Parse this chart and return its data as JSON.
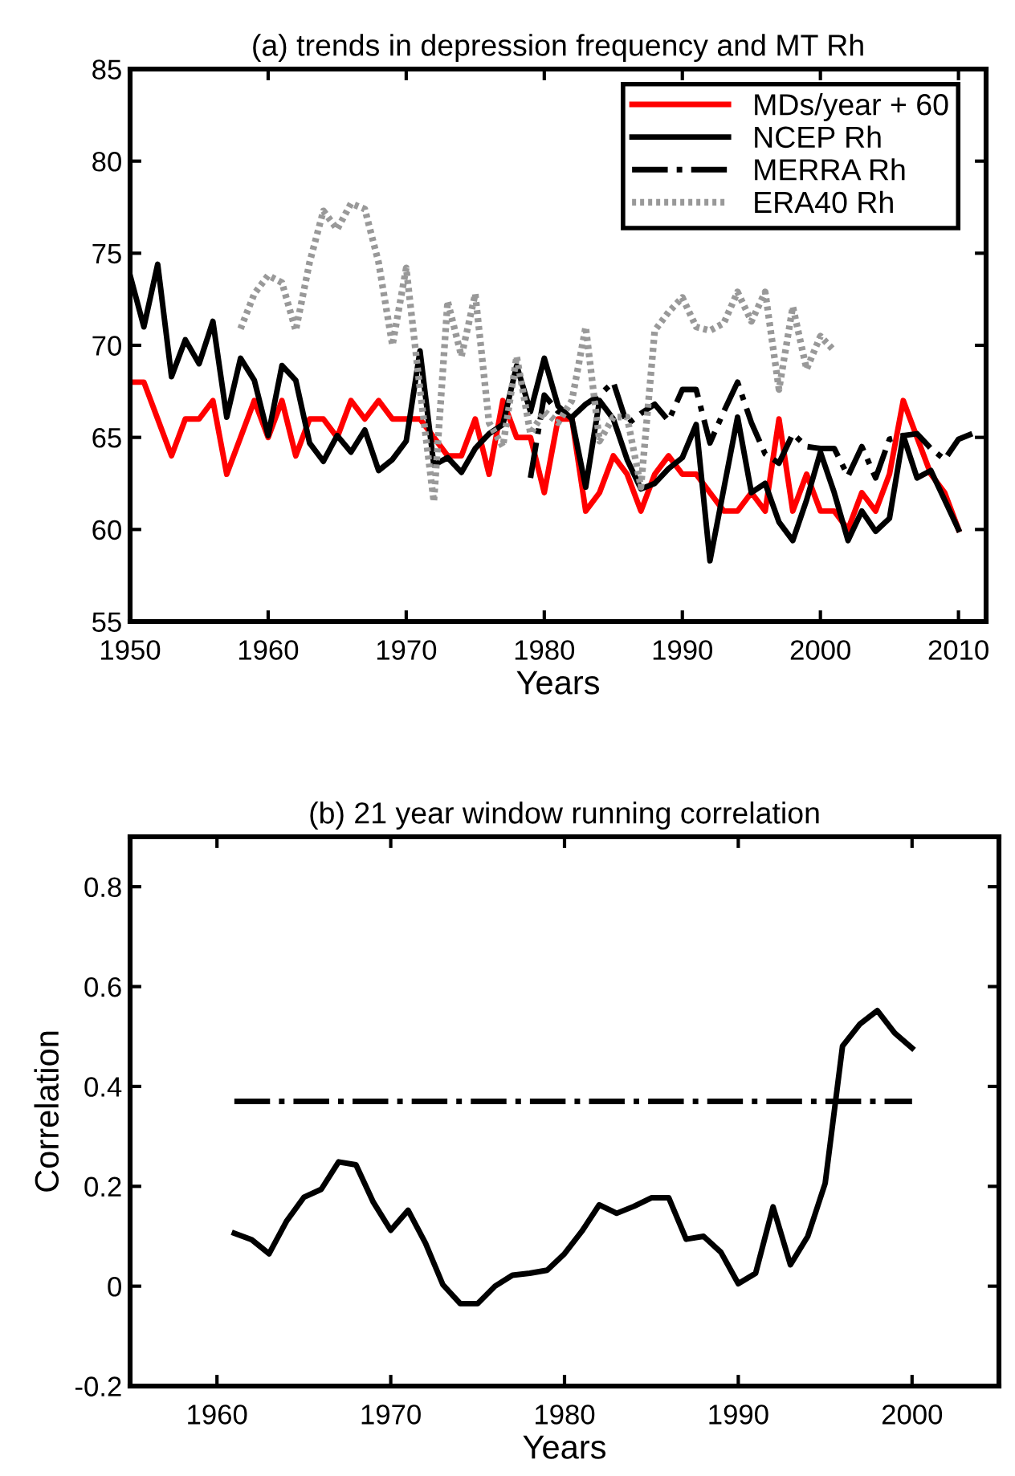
{
  "chart_data": [
    {
      "type": "line",
      "title": "(a) trends in depression frequency and MT Rh",
      "xlabel": "Years",
      "xlim": [
        1950,
        2012
      ],
      "xticks": [
        1950,
        1960,
        1970,
        1980,
        1990,
        2000,
        2010
      ],
      "ylim": [
        55,
        85
      ],
      "yticks": [
        55,
        60,
        65,
        70,
        75,
        80,
        85
      ],
      "legend": "top right",
      "grid": false,
      "series": [
        {
          "name": "MDs/year + 60",
          "color": "#ff0000",
          "line_style": "solid",
          "x": [
            1950,
            1951,
            1952,
            1953,
            1954,
            1955,
            1956,
            1957,
            1958,
            1959,
            1960,
            1961,
            1962,
            1963,
            1964,
            1965,
            1966,
            1967,
            1968,
            1969,
            1970,
            1971,
            1972,
            1973,
            1974,
            1975,
            1976,
            1977,
            1978,
            1979,
            1980,
            1981,
            1982,
            1983,
            1984,
            1985,
            1986,
            1987,
            1988,
            1989,
            1990,
            1991,
            1992,
            1993,
            1994,
            1995,
            1996,
            1997,
            1998,
            1999,
            2000,
            2001,
            2002,
            2003,
            2004,
            2005,
            2006,
            2007,
            2008,
            2009,
            2010
          ],
          "values": [
            68,
            68,
            66,
            64,
            66,
            66,
            67,
            63,
            65,
            67,
            65,
            67,
            64,
            66,
            66,
            65,
            67,
            66,
            67,
            66,
            66,
            66,
            65,
            64,
            64,
            66,
            63,
            67,
            65,
            65,
            62,
            66,
            66,
            61,
            62,
            64,
            63,
            61,
            63,
            64,
            63,
            63,
            62,
            61,
            61,
            62,
            61,
            66,
            61,
            63,
            61,
            61,
            60,
            62,
            61,
            63,
            67,
            65,
            63,
            62,
            60
          ]
        },
        {
          "name": "NCEP Rh",
          "color": "#000000",
          "line_style": "solid",
          "x": [
            1950,
            1951,
            1952,
            1953,
            1954,
            1955,
            1956,
            1957,
            1958,
            1959,
            1960,
            1961,
            1962,
            1963,
            1964,
            1965,
            1966,
            1967,
            1968,
            1969,
            1970,
            1971,
            1972,
            1973,
            1974,
            1975,
            1976,
            1977,
            1978,
            1979,
            1980,
            1981,
            1982,
            1983,
            1984,
            1985,
            1986,
            1987,
            1988,
            1989,
            1990,
            1991,
            1992,
            1993,
            1994,
            1995,
            1996,
            1997,
            1998,
            1999,
            2000,
            2001,
            2002,
            2003,
            2004,
            2005,
            2006,
            2007,
            2008,
            2009,
            2010
          ],
          "values": [
            73.8,
            71.0,
            74.4,
            68.3,
            70.3,
            69.0,
            71.3,
            66.1,
            69.3,
            68.1,
            65.1,
            68.9,
            68.1,
            64.7,
            63.7,
            65.1,
            64.2,
            65.4,
            63.2,
            63.8,
            64.8,
            69.7,
            63.5,
            63.9,
            63.1,
            64.4,
            65.2,
            65.7,
            68.9,
            66.4,
            69.3,
            66.7,
            66.0,
            62.3,
            67.0,
            66.0,
            63.8,
            62.2,
            62.5,
            63.3,
            63.9,
            65.7,
            58.3,
            62.2,
            66.1,
            62.0,
            62.5,
            60.4,
            59.4,
            61.6,
            64.2,
            62.0,
            59.4,
            61.0,
            59.9,
            60.6,
            65.1,
            62.8,
            63.2,
            61.6,
            60.0
          ]
        },
        {
          "name": "MERRA Rh",
          "color": "#000000",
          "line_style": "dashdot",
          "x": [
            1979,
            1980,
            1981,
            1982,
            1983,
            1984,
            1985,
            1986,
            1987,
            1988,
            1989,
            1990,
            1991,
            1992,
            1993,
            1994,
            1995,
            1996,
            1997,
            1998,
            1999,
            2000,
            2001,
            2002,
            2003,
            2004,
            2005,
            2006,
            2007,
            2008,
            2009,
            2010,
            2011
          ],
          "values": [
            62.8,
            67.3,
            66.4,
            66.1,
            66.8,
            67.3,
            68.0,
            65.7,
            66.3,
            66.8,
            65.9,
            67.6,
            67.6,
            64.7,
            66.4,
            68.0,
            65.8,
            64.1,
            63.6,
            65.2,
            64.5,
            64.4,
            64.4,
            62.9,
            64.5,
            62.8,
            64.9,
            65.1,
            65.2,
            64.4,
            63.8,
            64.9,
            65.2
          ]
        },
        {
          "name": "ERA40 Rh",
          "color": "#999999",
          "line_style": "dotted",
          "x": [
            1958,
            1959,
            1960,
            1961,
            1962,
            1963,
            1964,
            1965,
            1966,
            1967,
            1968,
            1969,
            1970,
            1971,
            1972,
            1973,
            1974,
            1975,
            1976,
            1977,
            1978,
            1979,
            1980,
            1981,
            1982,
            1983,
            1984,
            1985,
            1986,
            1987,
            1988,
            1989,
            1990,
            1991,
            1992,
            1993,
            1994,
            1995,
            1996,
            1997,
            1998,
            1999,
            2000,
            2001
          ],
          "values": [
            70.9,
            72.8,
            73.8,
            73.4,
            70.8,
            74.5,
            77.3,
            76.3,
            77.7,
            77.4,
            74.5,
            70.0,
            74.2,
            67.6,
            61.5,
            72.4,
            69.4,
            72.8,
            65.8,
            64.5,
            69.4,
            65.2,
            66.4,
            65.8,
            67.0,
            71.0,
            64.8,
            66.1,
            66.1,
            62.3,
            70.8,
            71.8,
            72.6,
            71.0,
            70.8,
            71.2,
            72.9,
            71.3,
            72.9,
            67.6,
            72.1,
            68.7,
            70.5,
            69.7
          ]
        }
      ]
    },
    {
      "type": "line",
      "title": "(b) 21 year window running correlation",
      "xlabel": "Years",
      "ylabel": "Correlation",
      "xlim": [
        1955,
        2005
      ],
      "xticks": [
        1960,
        1970,
        1980,
        1990,
        2000
      ],
      "ylim": [
        -0.2,
        0.9
      ],
      "yticks": [
        -0.2,
        0,
        0.2,
        0.4,
        0.6,
        0.8
      ],
      "legend": false,
      "grid": false,
      "series": [
        {
          "color": "#000000",
          "line_style": "solid",
          "x": [
            1961,
            1962,
            1963,
            1964,
            1965,
            1966,
            1967,
            1968,
            1969,
            1970,
            1971,
            1972,
            1973,
            1974,
            1975,
            1976,
            1977,
            1978,
            1979,
            1980,
            1981,
            1982,
            1983,
            1984,
            1985,
            1986,
            1987,
            1988,
            1989,
            1990,
            1991,
            1992,
            1993,
            1994,
            1995,
            1996,
            1997,
            1998,
            1999,
            2000
          ],
          "values": [
            0.106,
            0.093,
            0.065,
            0.13,
            0.178,
            0.194,
            0.249,
            0.243,
            0.168,
            0.112,
            0.152,
            0.086,
            0.003,
            -0.035,
            -0.035,
            0.0,
            0.022,
            0.026,
            0.032,
            0.065,
            0.11,
            0.163,
            0.146,
            0.16,
            0.177,
            0.177,
            0.094,
            0.1,
            0.068,
            0.005,
            0.026,
            0.159,
            0.043,
            0.1,
            0.206,
            0.481,
            0.525,
            0.552,
            0.507,
            0.477
          ]
        },
        {
          "color": "#000000",
          "line_style": "dashdot",
          "x": [
            1961,
            2000
          ],
          "values": [
            0.37,
            0.37
          ]
        }
      ]
    }
  ]
}
